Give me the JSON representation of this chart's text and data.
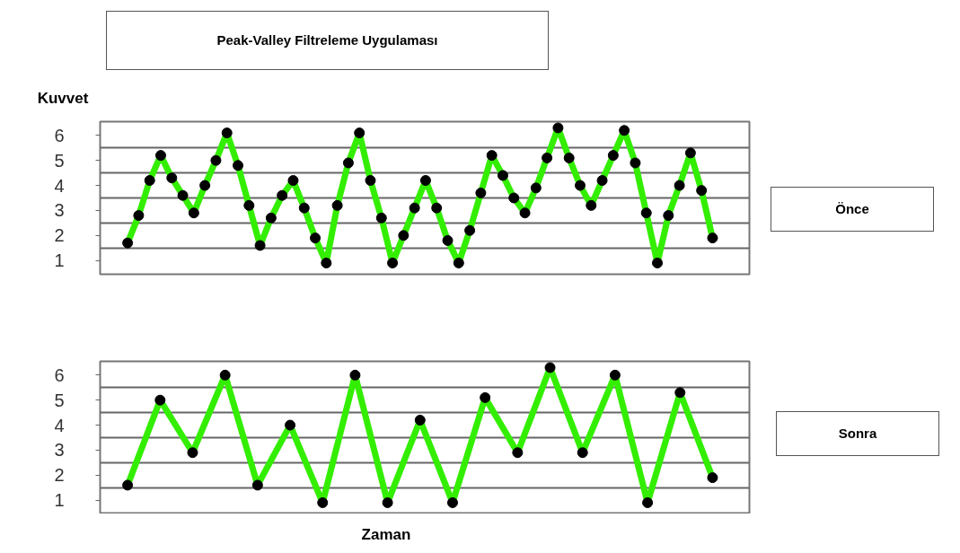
{
  "chart_data": [
    {
      "type": "line",
      "title": "Peak-Valley Filtreleme Uygulaması",
      "ylabel": "Kuvvet",
      "annotations": [
        "Önce"
      ],
      "categories": [
        null,
        null,
        null,
        null,
        null,
        null,
        null,
        null,
        null,
        null,
        null,
        null,
        null,
        null,
        null,
        null,
        null,
        null,
        null,
        null,
        null,
        null,
        null,
        null,
        null,
        null,
        null,
        null,
        null,
        null,
        null,
        null,
        null,
        null,
        null,
        null,
        null,
        null,
        null,
        null,
        null,
        null,
        null,
        null,
        null,
        null,
        null,
        null,
        null,
        null,
        null,
        null,
        null,
        null
      ],
      "series": [
        {
          "color": "#33ee00",
          "values": [
            1.7,
            2.8,
            4.2,
            5.2,
            4.3,
            3.6,
            2.9,
            4.0,
            5.0,
            6.1,
            4.8,
            3.2,
            1.6,
            2.7,
            3.6,
            4.2,
            3.1,
            1.9,
            0.9,
            3.2,
            4.9,
            6.1,
            4.2,
            2.7,
            0.9,
            2.0,
            3.1,
            4.2,
            3.1,
            1.8,
            0.9,
            2.2,
            3.7,
            5.2,
            4.4,
            3.5,
            2.9,
            3.9,
            5.1,
            6.3,
            5.1,
            4.0,
            3.2,
            4.2,
            5.2,
            6.2,
            4.9,
            2.9,
            0.9,
            2.8,
            4.0,
            5.3,
            3.8,
            1.9
          ]
        }
      ],
      "ylim": [
        0.45,
        6.55
      ],
      "yticks": [
        1,
        {
          "value": 1.5,
          "label": null
        },
        2,
        {
          "value": 2.5,
          "label": null
        },
        3,
        {
          "value": 3.5,
          "label": null
        },
        4,
        {
          "value": 4.5,
          "label": null
        },
        5,
        {
          "value": 5.5,
          "label": null
        },
        6
      ],
      "grid": "y",
      "marker": "circle",
      "line_style": "solid",
      "tick_labels": "y"
    },
    {
      "type": "line",
      "xlabel": "Zaman",
      "annotations": [
        "Sonra"
      ],
      "categories": [
        null,
        null,
        null,
        null,
        null,
        null,
        null,
        null,
        null,
        null,
        null,
        null,
        null,
        null,
        null,
        null,
        null,
        null,
        null
      ],
      "series": [
        {
          "color": "#33ee00",
          "values": [
            1.6,
            5.0,
            2.9,
            6.0,
            1.6,
            4.0,
            0.9,
            6.0,
            0.9,
            4.2,
            0.9,
            5.1,
            2.9,
            6.3,
            2.9,
            6.0,
            0.9,
            5.3,
            1.9
          ]
        }
      ],
      "ylim": [
        0.45,
        6.55
      ],
      "yticks": [
        1,
        {
          "value": 1.5,
          "label": null
        },
        2,
        {
          "value": 2.5,
          "label": null
        },
        3,
        {
          "value": 3.5,
          "label": null
        },
        4,
        {
          "value": 4.5,
          "label": null
        },
        5,
        {
          "value": 5.5,
          "label": null
        },
        6
      ],
      "grid": "y",
      "marker": "circle",
      "line_style": "solid",
      "tick_labels": "y"
    }
  ]
}
